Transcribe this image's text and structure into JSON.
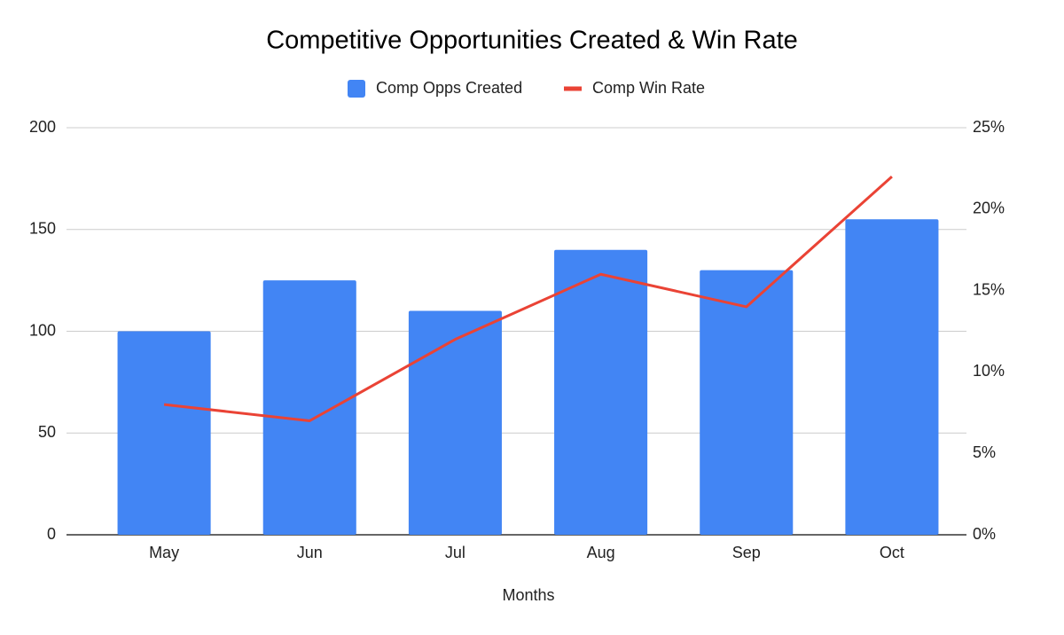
{
  "chart_data": {
    "type": "bar_line",
    "title": "Competitive Opportunities Created & Win Rate",
    "x_label": "Months",
    "categories": [
      "May",
      "Jun",
      "Jul",
      "Aug",
      "Sep",
      "Oct"
    ],
    "series": [
      {
        "name": "Comp Opps Created",
        "type": "bar",
        "color": "#4285f4",
        "values": [
          100,
          125,
          110,
          140,
          130,
          155
        ]
      },
      {
        "name": "Comp Win Rate",
        "type": "line",
        "axis": "y2",
        "color": "#ea4335",
        "values": [
          8,
          7,
          12,
          16,
          14,
          22
        ]
      }
    ],
    "ylim": [
      0,
      200
    ],
    "yticks": [
      0,
      50,
      100,
      150,
      200
    ],
    "y2lim": [
      0,
      25
    ],
    "y2ticks": [
      {
        "value": 0,
        "label": "0%"
      },
      {
        "value": 5,
        "label": "5%"
      },
      {
        "value": 10,
        "label": "10%"
      },
      {
        "value": 15,
        "label": "15%"
      },
      {
        "value": 20,
        "label": "20%"
      },
      {
        "value": 25,
        "label": "25%"
      }
    ],
    "grid": true,
    "legend": "top"
  }
}
